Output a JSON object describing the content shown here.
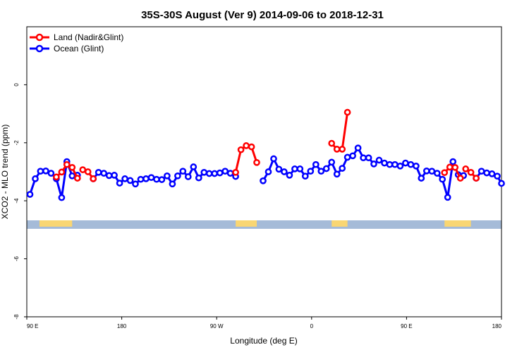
{
  "chart_data": {
    "type": "line",
    "title": "35S-30S August (Ver 9)   2014-09-06 to 2018-12-31",
    "xlabel": "Longitude (deg E)",
    "ylabel": "XCO2 - MLO trend (ppm)",
    "xlim": [
      90,
      540
    ],
    "ylim": [
      -8,
      2
    ],
    "x_ticks": [
      {
        "value": 90,
        "label": "90 E"
      },
      {
        "value": 180,
        "label": "180"
      },
      {
        "value": 270,
        "label": "90 W"
      },
      {
        "value": 360,
        "label": "0"
      },
      {
        "value": 450,
        "label": "90 E"
      },
      {
        "value": 540,
        "label": "180"
      }
    ],
    "y_ticks": [
      {
        "value": 0,
        "label": "0"
      },
      {
        "value": -2,
        "label": "-2"
      },
      {
        "value": -4,
        "label": "-4"
      },
      {
        "value": -6,
        "label": "-6"
      },
      {
        "value": -8,
        "label": "-8"
      }
    ],
    "legend": {
      "position": "top-left"
    },
    "colors": {
      "land": "#ff0000",
      "ocean": "#0000ff",
      "map_ocean": "#a5bbd8",
      "map_land": "#f9d673"
    },
    "series": [
      {
        "name": "Ocean (Glint)",
        "color": "#0000ff",
        "segments": [
          [
            [
              93,
              -3.78
            ],
            [
              98,
              -3.24
            ],
            [
              103,
              -2.98
            ],
            [
              108,
              -2.97
            ],
            [
              113,
              -3.05
            ],
            [
              118,
              -3.24
            ],
            [
              123,
              -3.89
            ],
            [
              128,
              -2.65
            ],
            [
              133,
              -3.14
            ],
            [
              138,
              -3.12
            ]
          ],
          [
            [
              153,
              -3.24
            ],
            [
              158,
              -3.02
            ],
            [
              163,
              -3.05
            ],
            [
              168,
              -3.13
            ],
            [
              173,
              -3.12
            ],
            [
              178,
              -3.39
            ],
            [
              183,
              -3.24
            ],
            [
              188,
              -3.3
            ],
            [
              193,
              -3.42
            ],
            [
              198,
              -3.26
            ],
            [
              203,
              -3.24
            ],
            [
              208,
              -3.2
            ],
            [
              213,
              -3.26
            ],
            [
              218,
              -3.27
            ],
            [
              223,
              -3.14
            ],
            [
              228,
              -3.42
            ],
            [
              233,
              -3.14
            ],
            [
              238,
              -2.98
            ],
            [
              243,
              -3.17
            ],
            [
              248,
              -2.83
            ],
            [
              253,
              -3.21
            ],
            [
              258,
              -3.02
            ],
            [
              263,
              -3.06
            ],
            [
              268,
              -3.06
            ],
            [
              273,
              -3.04
            ],
            [
              278,
              -2.98
            ],
            [
              283,
              -3.05
            ],
            [
              288,
              -3.16
            ]
          ],
          [
            [
              314,
              -3.31
            ],
            [
              319,
              -3.0
            ],
            [
              324,
              -2.55
            ],
            [
              329,
              -2.91
            ],
            [
              334,
              -3.0
            ],
            [
              339,
              -3.12
            ],
            [
              344,
              -2.9
            ],
            [
              349,
              -2.9
            ],
            [
              354,
              -3.15
            ],
            [
              359,
              -2.98
            ],
            [
              364,
              -2.75
            ],
            [
              369,
              -2.98
            ],
            [
              374,
              -2.89
            ],
            [
              379,
              -2.67
            ],
            [
              384,
              -3.08
            ],
            [
              389,
              -2.88
            ],
            [
              394,
              -2.5
            ],
            [
              399,
              -2.45
            ],
            [
              404,
              -2.18
            ],
            [
              409,
              -2.52
            ],
            [
              414,
              -2.52
            ],
            [
              419,
              -2.73
            ],
            [
              424,
              -2.6
            ],
            [
              429,
              -2.7
            ],
            [
              434,
              -2.75
            ],
            [
              439,
              -2.75
            ],
            [
              444,
              -2.8
            ],
            [
              449,
              -2.7
            ],
            [
              454,
              -2.75
            ],
            [
              459,
              -2.8
            ],
            [
              464,
              -3.22
            ],
            [
              469,
              -2.97
            ],
            [
              474,
              -2.98
            ],
            [
              479,
              -3.05
            ],
            [
              484,
              -3.26
            ],
            [
              489,
              -3.88
            ],
            [
              494,
              -2.65
            ],
            [
              499,
              -3.1
            ],
            [
              504,
              -3.13
            ]
          ],
          [
            [
              516,
              -3.22
            ],
            [
              521,
              -2.98
            ],
            [
              526,
              -3.04
            ],
            [
              531,
              -3.07
            ],
            [
              536,
              -3.15
            ],
            [
              540,
              -3.4
            ]
          ]
        ]
      },
      {
        "name": "Land (Nadir&Glint)",
        "color": "#ff0000",
        "segments": [
          [
            [
              118,
              -3.18
            ],
            [
              123,
              -3.01
            ],
            [
              128,
              -2.75
            ],
            [
              133,
              -2.85
            ],
            [
              138,
              -3.22
            ]
          ],
          [
            [
              143,
              -2.93
            ],
            [
              148,
              -3.0
            ],
            [
              153,
              -3.24
            ]
          ],
          [
            [
              288,
              -3.02
            ],
            [
              293,
              -2.24
            ],
            [
              298,
              -2.1
            ],
            [
              303,
              -2.14
            ],
            [
              308,
              -2.68
            ]
          ],
          [
            [
              379,
              -2.02
            ],
            [
              384,
              -2.22
            ],
            [
              389,
              -2.22
            ],
            [
              394,
              -0.95
            ]
          ],
          [
            [
              486,
              -3.03
            ],
            [
              491,
              -2.84
            ],
            [
              496,
              -2.85
            ],
            [
              501,
              -3.22
            ]
          ],
          [
            [
              506,
              -2.9
            ],
            [
              511,
              -3.02
            ],
            [
              516,
              -3.22
            ]
          ]
        ]
      }
    ]
  }
}
